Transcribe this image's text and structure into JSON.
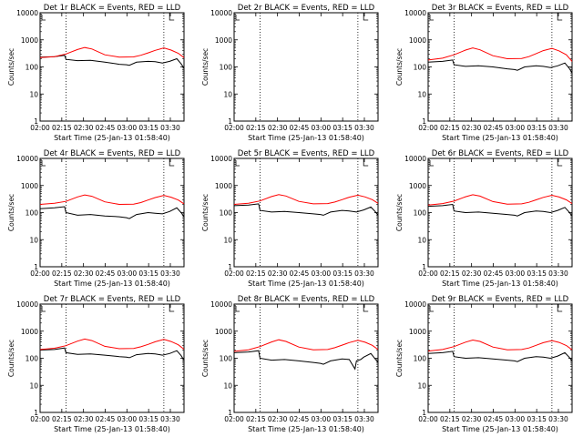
{
  "chart_data": {
    "type": "line",
    "x_ticks": [
      "02:00",
      "02:15",
      "02:30",
      "02:45",
      "03:00",
      "03:15",
      "03:30"
    ],
    "x_range_min": [
      0,
      100
    ],
    "ylim": [
      1,
      10000
    ],
    "y_scale": "log",
    "y_ticks": [
      "1",
      "10",
      "100",
      "1000",
      "10000"
    ],
    "ylabel": "Counts/sec",
    "xlabel": "Start Time (25-Jan-13 01:58:40)",
    "dotted_vlines_min": [
      18,
      86
    ],
    "flag_min": 90,
    "colors": {
      "events": "#000000",
      "lld": "#ff0000",
      "axis": "#000000"
    },
    "series_legend": {
      "events": "BLACK = Events",
      "lld": "RED = LLD"
    },
    "panels": [
      {
        "title": "Det 1r  BLACK = Events, RED = LLD",
        "series": [
          {
            "key": "events",
            "x": [
              0,
              10,
              17,
              18,
              26,
              35,
              45,
              55,
              60,
              62,
              67,
              75,
              80,
              85,
              90,
              95,
              98,
              100
            ],
            "y": [
              230,
              240,
              270,
              190,
              170,
              175,
              150,
              125,
              120,
              115,
              150,
              160,
              155,
              140,
              160,
              200,
              130,
              90
            ]
          },
          {
            "key": "lld",
            "x": [
              0,
              10,
              18,
              26,
              31,
              36,
              45,
              55,
              65,
              70,
              75,
              80,
              86,
              91,
              96,
              100
            ],
            "y": [
              220,
              240,
              300,
              440,
              520,
              460,
              280,
              230,
              235,
              270,
              330,
              410,
              500,
              420,
              320,
              220
            ]
          }
        ]
      },
      {
        "title": "Det 2r  BLACK = Events, RED = LLD",
        "series": []
      },
      {
        "title": "Det 3r  BLACK = Events, RED = LLD",
        "series": [
          {
            "key": "events",
            "x": [
              0,
              10,
              17,
              18,
              26,
              35,
              45,
              55,
              60,
              62,
              67,
              75,
              80,
              85,
              90,
              95,
              98,
              100
            ],
            "y": [
              150,
              160,
              180,
              120,
              105,
              110,
              100,
              85,
              80,
              75,
              100,
              110,
              105,
              95,
              110,
              140,
              90,
              60
            ]
          },
          {
            "key": "lld",
            "x": [
              0,
              10,
              18,
              26,
              31,
              36,
              45,
              55,
              65,
              70,
              75,
              80,
              86,
              91,
              96,
              100
            ],
            "y": [
              180,
              210,
              280,
              420,
              500,
              430,
              260,
              200,
              205,
              240,
              310,
              400,
              480,
              390,
              280,
              160
            ]
          }
        ]
      },
      {
        "title": "Det 4r  BLACK = Events, RED = LLD",
        "series": [
          {
            "key": "events",
            "x": [
              0,
              10,
              17,
              18,
              26,
              35,
              45,
              55,
              60,
              62,
              67,
              75,
              80,
              85,
              90,
              95,
              98,
              100
            ],
            "y": [
              140,
              150,
              165,
              100,
              80,
              85,
              75,
              70,
              65,
              60,
              85,
              100,
              95,
              90,
              110,
              150,
              100,
              70
            ]
          },
          {
            "key": "lld",
            "x": [
              0,
              10,
              18,
              26,
              31,
              36,
              45,
              55,
              65,
              70,
              75,
              80,
              86,
              91,
              96,
              100
            ],
            "y": [
              200,
              220,
              260,
              380,
              450,
              400,
              250,
              200,
              205,
              235,
              290,
              360,
              430,
              370,
              290,
              210
            ]
          }
        ]
      },
      {
        "title": "Det 5r  BLACK = Events, RED = LLD",
        "series": [
          {
            "key": "events",
            "x": [
              0,
              10,
              17,
              18,
              26,
              35,
              45,
              55,
              60,
              62,
              67,
              75,
              80,
              85,
              90,
              95,
              98,
              100
            ],
            "y": [
              180,
              190,
              210,
              120,
              105,
              110,
              100,
              90,
              85,
              80,
              105,
              120,
              115,
              105,
              125,
              160,
              110,
              80
            ]
          },
          {
            "key": "lld",
            "x": [
              0,
              10,
              18,
              26,
              31,
              36,
              45,
              55,
              65,
              70,
              75,
              80,
              86,
              91,
              96,
              100
            ],
            "y": [
              200,
              220,
              270,
              390,
              460,
              410,
              260,
              210,
              215,
              245,
              300,
              370,
              440,
              380,
              300,
              220
            ]
          }
        ]
      },
      {
        "title": "Det 6r  BLACK = Events, RED = LLD",
        "series": [
          {
            "key": "events",
            "x": [
              0,
              10,
              17,
              18,
              26,
              35,
              45,
              55,
              60,
              62,
              67,
              75,
              80,
              85,
              90,
              95,
              98,
              100
            ],
            "y": [
              170,
              180,
              200,
              115,
              100,
              105,
              95,
              85,
              80,
              75,
              100,
              115,
              110,
              100,
              120,
              155,
              105,
              75
            ]
          },
          {
            "key": "lld",
            "x": [
              0,
              10,
              18,
              26,
              31,
              36,
              45,
              55,
              65,
              70,
              75,
              80,
              86,
              91,
              96,
              100
            ],
            "y": [
              190,
              215,
              265,
              385,
              455,
              405,
              255,
              205,
              210,
              240,
              295,
              365,
              435,
              375,
              295,
              215
            ]
          }
        ]
      },
      {
        "title": "Det 7r  BLACK = Events, RED = LLD",
        "series": [
          {
            "key": "events",
            "x": [
              0,
              10,
              17,
              18,
              26,
              35,
              45,
              55,
              60,
              62,
              67,
              75,
              80,
              85,
              90,
              95,
              98,
              100
            ],
            "y": [
              200,
              210,
              240,
              160,
              140,
              145,
              130,
              115,
              110,
              105,
              135,
              150,
              145,
              130,
              150,
              190,
              125,
              85
            ]
          },
          {
            "key": "lld",
            "x": [
              0,
              10,
              18,
              26,
              31,
              36,
              45,
              55,
              65,
              70,
              75,
              80,
              86,
              91,
              96,
              100
            ],
            "y": [
              210,
              235,
              290,
              430,
              510,
              450,
              275,
              225,
              230,
              265,
              325,
              405,
              495,
              415,
              315,
              215
            ]
          }
        ]
      },
      {
        "title": "Det 8r  BLACK = Events, RED = LLD",
        "series": [
          {
            "key": "events",
            "x": [
              0,
              10,
              17,
              18,
              26,
              35,
              45,
              55,
              60,
              62,
              67,
              75,
              80,
              84,
              85,
              88,
              90,
              95,
              98,
              100
            ],
            "y": [
              160,
              170,
              190,
              100,
              85,
              90,
              80,
              70,
              65,
              60,
              80,
              95,
              90,
              40,
              80,
              90,
              110,
              150,
              95,
              70
            ]
          },
          {
            "key": "lld",
            "x": [
              0,
              10,
              18,
              26,
              31,
              36,
              45,
              55,
              65,
              70,
              75,
              80,
              86,
              91,
              96,
              100
            ],
            "y": [
              180,
              205,
              270,
              400,
              480,
              420,
              260,
              205,
              210,
              245,
              305,
              380,
              460,
              390,
              300,
              210
            ]
          }
        ]
      },
      {
        "title": "Det 9r  BLACK = Events, RED = LLD",
        "series": [
          {
            "key": "events",
            "x": [
              0,
              10,
              17,
              18,
              26,
              35,
              45,
              55,
              60,
              62,
              67,
              75,
              80,
              85,
              90,
              95,
              98,
              100
            ],
            "y": [
              150,
              160,
              180,
              115,
              100,
              105,
              95,
              85,
              80,
              75,
              100,
              115,
              110,
              100,
              120,
              160,
              110,
              80
            ]
          },
          {
            "key": "lld",
            "x": [
              0,
              10,
              18,
              26,
              31,
              36,
              45,
              55,
              65,
              70,
              75,
              80,
              86,
              91,
              96,
              100
            ],
            "y": [
              185,
              210,
              270,
              395,
              470,
              420,
              260,
              205,
              210,
              240,
              300,
              375,
              450,
              385,
              295,
              205
            ]
          }
        ]
      }
    ]
  }
}
